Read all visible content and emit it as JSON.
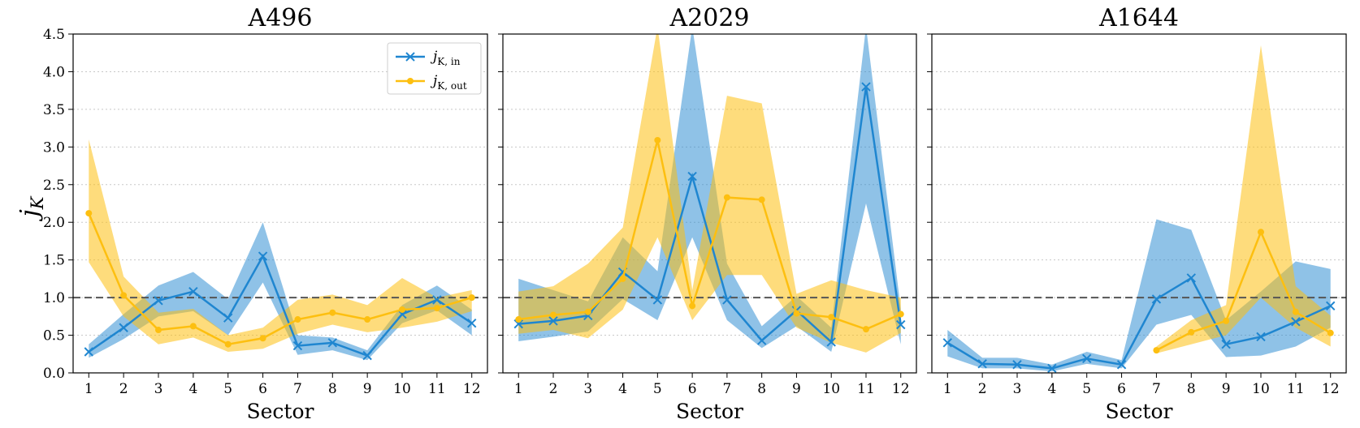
{
  "chart_data": [
    {
      "type": "line",
      "title": "A496",
      "xlabel": "Sector",
      "ylabel": "j_K",
      "ylabel_display": "j",
      "ylabel_subscript": "K",
      "x": [
        1,
        2,
        3,
        4,
        5,
        6,
        7,
        8,
        9,
        10,
        11,
        12
      ],
      "xticks": [
        "1",
        "2",
        "3",
        "4",
        "5",
        "6",
        "7",
        "8",
        "9",
        "10",
        "11",
        "12"
      ],
      "ylim": [
        0,
        4.5
      ],
      "yticks": [
        "0.0",
        "0.5",
        "1.0",
        "1.5",
        "2.0",
        "2.5",
        "3.0",
        "3.5",
        "4.0",
        "4.5"
      ],
      "grid": "horizontal dotted",
      "reference_line": 1.0,
      "legend_position": "top-right",
      "series": [
        {
          "name": "j_K,in",
          "label_main": "j",
          "label_sub": "K, in",
          "color": "#1f86d0",
          "marker": "x",
          "values": [
            0.28,
            0.6,
            0.96,
            1.08,
            0.73,
            1.55,
            0.36,
            0.4,
            0.23,
            0.78,
            0.97,
            0.66
          ],
          "lower": [
            0.2,
            0.45,
            0.75,
            0.82,
            0.5,
            1.2,
            0.24,
            0.3,
            0.17,
            0.66,
            0.83,
            0.5
          ],
          "upper": [
            0.38,
            0.78,
            1.16,
            1.34,
            0.98,
            2.0,
            0.5,
            0.47,
            0.3,
            0.9,
            1.16,
            0.84
          ]
        },
        {
          "name": "j_K,out",
          "label_main": "j",
          "label_sub": "K, out",
          "color": "#fdbf10",
          "marker": "o",
          "values": [
            2.12,
            1.03,
            0.57,
            0.62,
            0.38,
            0.46,
            0.71,
            0.8,
            0.71,
            0.84,
            0.86,
            1.0
          ],
          "lower": [
            1.47,
            0.75,
            0.38,
            0.47,
            0.28,
            0.32,
            0.52,
            0.64,
            0.54,
            0.6,
            0.68,
            0.82
          ],
          "upper": [
            3.1,
            1.28,
            0.8,
            0.85,
            0.5,
            0.6,
            0.97,
            1.04,
            0.9,
            1.26,
            1.0,
            1.1
          ]
        }
      ]
    },
    {
      "type": "line",
      "title": "A2029",
      "xlabel": "Sector",
      "x": [
        1,
        2,
        3,
        4,
        5,
        6,
        7,
        8,
        9,
        10,
        11,
        12
      ],
      "xticks": [
        "1",
        "2",
        "3",
        "4",
        "5",
        "6",
        "7",
        "8",
        "9",
        "10",
        "11",
        "12"
      ],
      "ylim": [
        0,
        4.5
      ],
      "reference_line": 1.0,
      "series": [
        {
          "name": "j_K,in",
          "color": "#1f86d0",
          "marker": "x",
          "values": [
            0.65,
            0.69,
            0.76,
            1.34,
            0.97,
            2.61,
            0.97,
            0.43,
            0.83,
            0.41,
            3.8,
            0.64
          ],
          "lower": [
            0.42,
            0.48,
            0.55,
            0.98,
            0.7,
            1.8,
            0.7,
            0.33,
            0.62,
            0.28,
            2.25,
            0.38
          ],
          "upper": [
            1.25,
            1.1,
            0.95,
            1.8,
            1.35,
            4.6,
            1.45,
            0.62,
            1.02,
            0.6,
            4.6,
            0.85
          ]
        },
        {
          "name": "j_K,out",
          "color": "#fdbf10",
          "marker": "o",
          "values": [
            0.71,
            0.77,
            0.81,
            1.25,
            3.09,
            0.89,
            2.33,
            2.3,
            0.79,
            0.74,
            0.58,
            0.78
          ],
          "lower": [
            0.52,
            0.57,
            0.46,
            0.84,
            1.8,
            0.7,
            1.3,
            1.3,
            0.6,
            0.4,
            0.27,
            0.53
          ],
          "upper": [
            1.08,
            1.15,
            1.45,
            1.93,
            4.6,
            1.1,
            3.68,
            3.58,
            1.05,
            1.23,
            1.1,
            1.0
          ]
        }
      ]
    },
    {
      "type": "line",
      "title": "A1644",
      "xlabel": "Sector",
      "x": [
        1,
        2,
        3,
        4,
        5,
        6,
        7,
        8,
        9,
        10,
        11,
        12
      ],
      "xticks": [
        "1",
        "2",
        "3",
        "4",
        "5",
        "6",
        "7",
        "8",
        "9",
        "10",
        "11",
        "12"
      ],
      "ylim": [
        0,
        4.5
      ],
      "reference_line": 1.0,
      "series": [
        {
          "name": "j_K,in",
          "color": "#1f86d0",
          "marker": "x",
          "values": [
            0.4,
            0.12,
            0.11,
            0.06,
            0.19,
            0.11,
            0.98,
            1.26,
            0.38,
            0.48,
            0.68,
            0.89
          ],
          "lower": [
            0.22,
            0.06,
            0.06,
            0.02,
            0.12,
            0.06,
            0.64,
            0.77,
            0.21,
            0.23,
            0.35,
            0.6
          ],
          "upper": [
            0.57,
            0.2,
            0.2,
            0.11,
            0.28,
            0.17,
            2.04,
            1.9,
            0.7,
            1.08,
            1.48,
            1.38
          ]
        },
        {
          "name": "j_K,out",
          "color": "#fdbf10",
          "marker": "o",
          "values": [
            null,
            null,
            null,
            null,
            null,
            null,
            0.3,
            0.54,
            0.69,
            1.87,
            0.81,
            0.53
          ],
          "lower": [
            null,
            null,
            null,
            null,
            null,
            null,
            0.26,
            0.38,
            0.5,
            1.0,
            0.6,
            0.35
          ],
          "upper": [
            null,
            null,
            null,
            null,
            null,
            null,
            0.35,
            0.7,
            0.9,
            4.35,
            1.15,
            0.76
          ]
        }
      ]
    }
  ]
}
